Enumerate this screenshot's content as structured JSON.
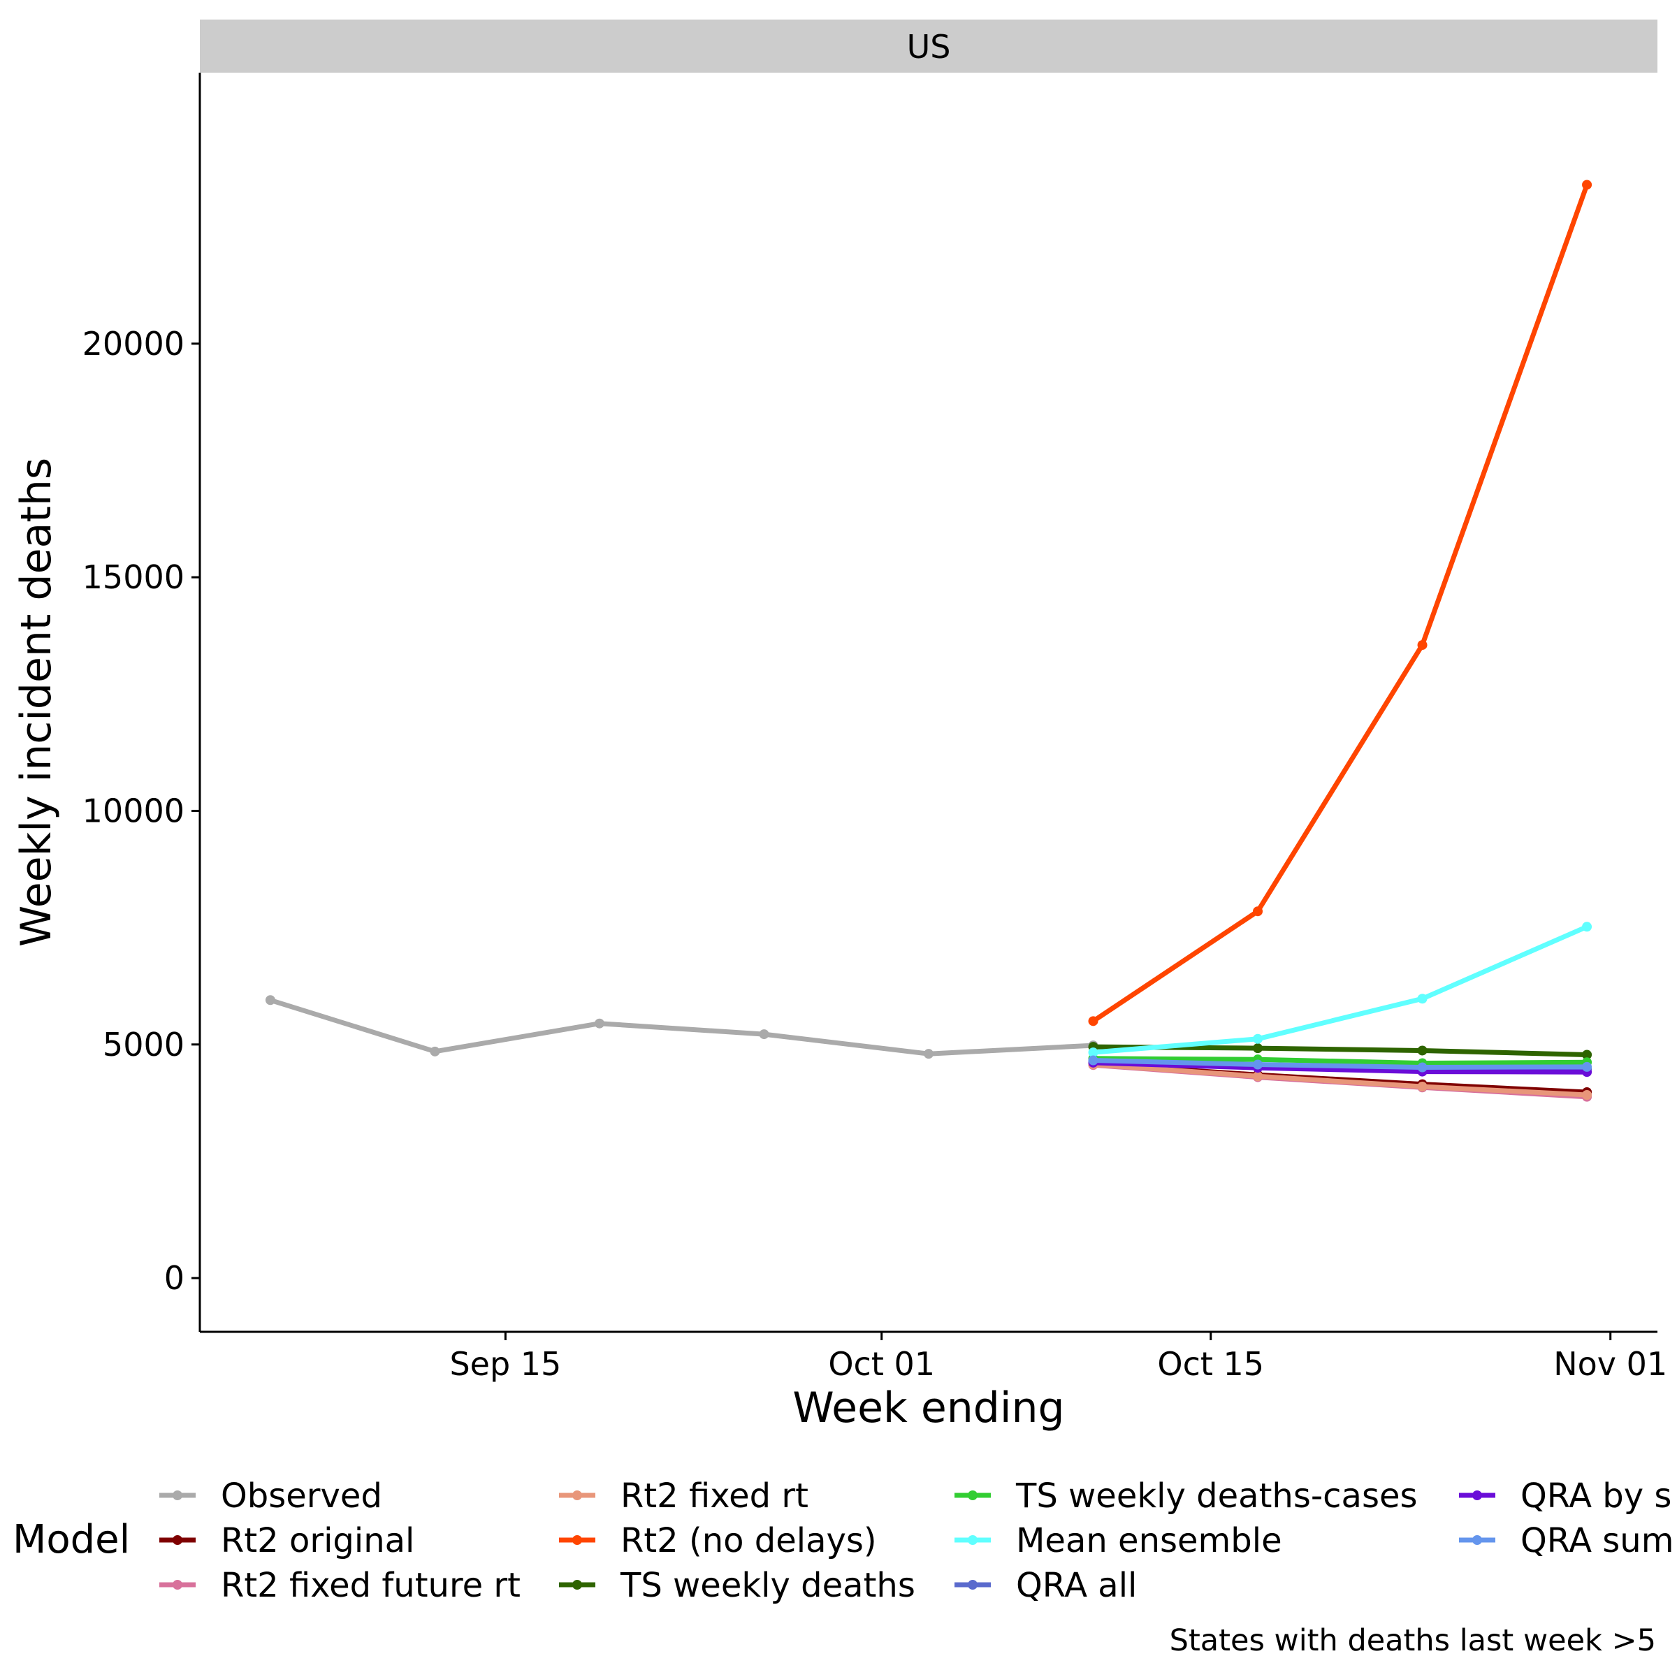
{
  "chart_data": {
    "type": "line",
    "facet": "US",
    "xlabel": "Week ending",
    "ylabel": "Weekly incident deaths",
    "x_ticks": [
      {
        "date": "2020-09-15",
        "label": "Sep 15"
      },
      {
        "date": "2020-10-01",
        "label": "Oct 01"
      },
      {
        "date": "2020-10-15",
        "label": "Oct 15"
      },
      {
        "date": "2020-11-01",
        "label": "Nov 01"
      }
    ],
    "y_ticks": [
      0,
      5000,
      10000,
      15000,
      20000
    ],
    "xlim": [
      "2020-09-02",
      "2020-11-03"
    ],
    "ylim": [
      -1150,
      25800
    ],
    "grid": false,
    "legend_title": "Model",
    "legend_position": "bottom",
    "caption": "States with deaths last week >5",
    "series": [
      {
        "name": "Observed",
        "color": "#AAAAAA",
        "x": [
          "2020-09-05",
          "2020-09-12",
          "2020-09-19",
          "2020-09-26",
          "2020-10-03",
          "2020-10-10"
        ],
        "y": [
          5950,
          4850,
          5450,
          5220,
          4800,
          4980
        ]
      },
      {
        "name": "Rt2 original",
        "color": "#7F0000",
        "x": [
          "2020-10-10",
          "2020-10-17",
          "2020-10-24",
          "2020-10-31"
        ],
        "y": [
          4580,
          4350,
          4150,
          3980
        ]
      },
      {
        "name": "Rt2 fixed future rt",
        "color": "#D8719B",
        "x": [
          "2020-10-10",
          "2020-10-17",
          "2020-10-24",
          "2020-10-31"
        ],
        "y": [
          4560,
          4300,
          4080,
          3880
        ]
      },
      {
        "name": "Rt2 fixed rt",
        "color": "#E8967A",
        "x": [
          "2020-10-10",
          "2020-10-17",
          "2020-10-24",
          "2020-10-31"
        ],
        "y": [
          4570,
          4320,
          4100,
          3920
        ]
      },
      {
        "name": "Rt2 (no delays)",
        "color": "#FF4500",
        "x": [
          "2020-10-10",
          "2020-10-17",
          "2020-10-24",
          "2020-10-31"
        ],
        "y": [
          5500,
          7850,
          13550,
          23400
        ]
      },
      {
        "name": "TS weekly deaths",
        "color": "#2E6400",
        "x": [
          "2020-10-10",
          "2020-10-17",
          "2020-10-24",
          "2020-10-31"
        ],
        "y": [
          4950,
          4920,
          4870,
          4780
        ]
      },
      {
        "name": "TS weekly deaths-cases",
        "color": "#32CD32",
        "x": [
          "2020-10-10",
          "2020-10-17",
          "2020-10-24",
          "2020-10-31"
        ],
        "y": [
          4700,
          4680,
          4600,
          4620
        ]
      },
      {
        "name": "Mean ensemble",
        "color": "#60FFFF",
        "x": [
          "2020-10-10",
          "2020-10-17",
          "2020-10-24",
          "2020-10-31"
        ],
        "y": [
          4830,
          5120,
          5980,
          7520
        ]
      },
      {
        "name": "QRA all",
        "color": "#5A6ACD",
        "x": [
          "2020-10-10",
          "2020-10-17",
          "2020-10-24",
          "2020-10-31"
        ],
        "y": [
          4640,
          4550,
          4480,
          4470
        ]
      },
      {
        "name": "QRA by state",
        "color": "#6A0DD8",
        "x": [
          "2020-10-10",
          "2020-10-17",
          "2020-10-24",
          "2020-10-31"
        ],
        "y": [
          4610,
          4500,
          4420,
          4410
        ]
      },
      {
        "name": "QRA summed",
        "color": "#6495ED",
        "x": [
          "2020-10-10",
          "2020-10-17",
          "2020-10-24",
          "2020-10-31"
        ],
        "y": [
          4660,
          4570,
          4510,
          4520
        ]
      }
    ],
    "legend_entries": [
      {
        "label": "Observed",
        "color": "#AAAAAA"
      },
      {
        "label": "Rt2 original",
        "color": "#7F0000"
      },
      {
        "label": "Rt2 fixed future rt",
        "color": "#D8719B"
      },
      {
        "label": "Rt2 fixed rt",
        "color": "#E8967A"
      },
      {
        "label": "Rt2 (no delays)",
        "color": "#FF4500"
      },
      {
        "label": "TS weekly deaths",
        "color": "#2E6400"
      },
      {
        "label": "TS weekly deaths-cases",
        "color": "#32CD32"
      },
      {
        "label": "Mean ensemble",
        "color": "#60FFFF"
      },
      {
        "label": "QRA all",
        "color": "#5A6ACD"
      },
      {
        "label": "QRA by s",
        "color": "#6A0DD8"
      },
      {
        "label": "QRA sum",
        "color": "#6495ED"
      }
    ]
  }
}
